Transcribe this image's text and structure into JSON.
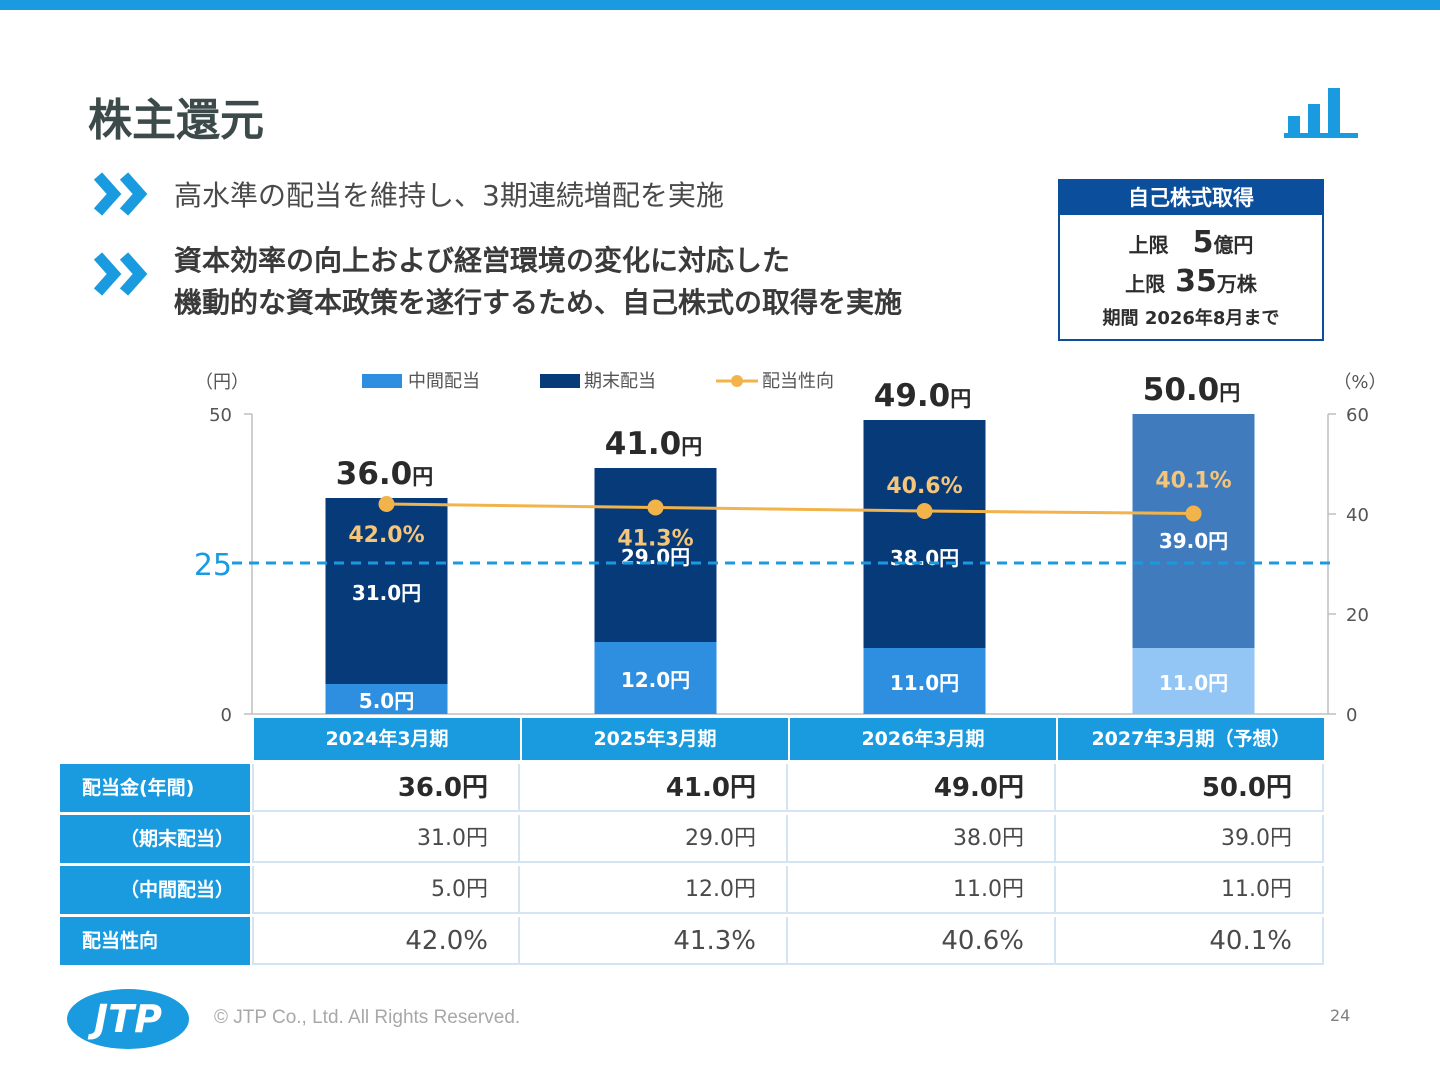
{
  "slide": {
    "title": "株主還元",
    "bullet1": "高水準の配当を維持し、3期連続増配を実施",
    "bullet2_line1": "資本効率の向上および経営環境の変化に対応した",
    "bullet2_line2": "機動的な資本政策を遂行するため、自己株式の取得を実施",
    "copyright": "© JTP Co., Ltd. All Rights Reserved.",
    "page_number": "24",
    "logo_text": "JTP"
  },
  "buyback": {
    "heading": "自己株式取得",
    "row1_label": "上限",
    "row1_value": "5",
    "row1_unit": "億円",
    "row2_label": "上限",
    "row2_value": "35",
    "row2_unit": "万株",
    "row3": "期間 2026年8月まで"
  },
  "chart_data": {
    "type": "bar",
    "stacked": true,
    "categories": [
      "2024年3月期",
      "2025年3月期",
      "2026年3月期",
      "2027年3月期（予想）"
    ],
    "series": [
      {
        "name": "中間配当",
        "values": [
          5.0,
          12.0,
          11.0,
          11.0
        ],
        "color": "#2e8fe0",
        "forecast_color": "#93c6f5"
      },
      {
        "name": "期末配当",
        "values": [
          31.0,
          29.0,
          38.0,
          39.0
        ],
        "color": "#073a78",
        "forecast_color": "#3f7bbd"
      },
      {
        "name": "配当性向",
        "values": [
          42.0,
          41.3,
          40.6,
          40.1
        ],
        "type": "line",
        "axis": "right",
        "color": "#f2b44a"
      }
    ],
    "totals": [
      "36.0",
      "41.0",
      "49.0",
      "50.0"
    ],
    "total_unit": "円",
    "interim_labels": [
      "5.0円",
      "12.0円",
      "11.0円",
      "11.0円"
    ],
    "year_end_labels": [
      "31.0円",
      "29.0円",
      "38.0円",
      "39.0円"
    ],
    "payout_labels": [
      "42.0%",
      "41.3%",
      "40.6%",
      "40.1%"
    ],
    "y_left": {
      "label": "（円）",
      "ylim": [
        0,
        50
      ],
      "ticks": [
        "0",
        "50"
      ]
    },
    "y_right": {
      "label": "（%）",
      "ylim": [
        0,
        60
      ],
      "ticks": [
        "0",
        "20",
        "40",
        "60"
      ]
    },
    "reference_line": {
      "value": 25,
      "label": "25",
      "color": "#1a9be0"
    },
    "legend_position": "top-center"
  },
  "table": {
    "row_headers": [
      "配当金(年間)",
      "（期末配当）",
      "（中間配当）",
      "配当性向"
    ],
    "rows": [
      [
        "36.0円",
        "41.0円",
        "49.0円",
        "50.0円"
      ],
      [
        "31.0円",
        "29.0円",
        "38.0円",
        "39.0円"
      ],
      [
        "5.0円",
        "12.0円",
        "11.0円",
        "11.0円"
      ],
      [
        "42.0%",
        "41.3%",
        "40.6%",
        "40.1%"
      ]
    ]
  }
}
